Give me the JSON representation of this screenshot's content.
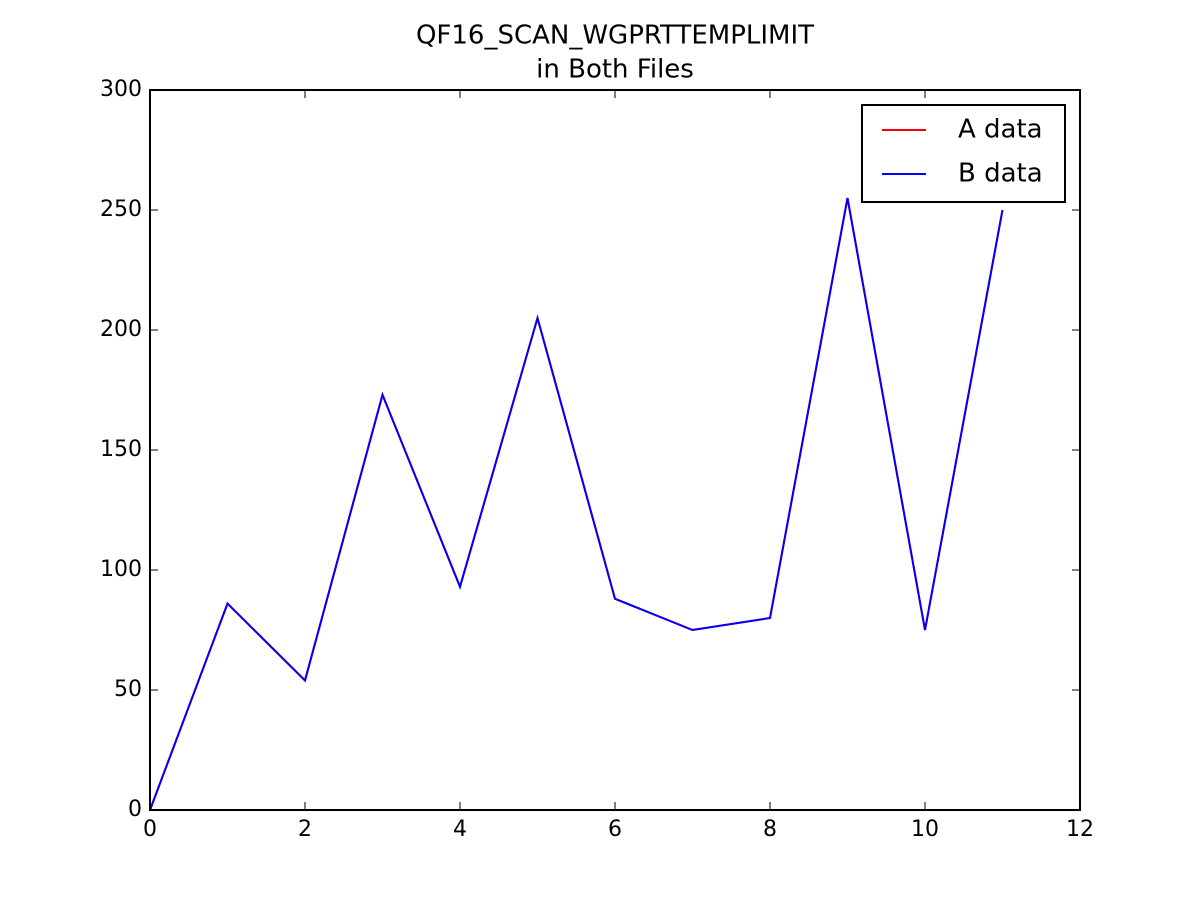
{
  "chart_data": {
    "type": "line",
    "title": [
      "QF16_SCAN_WGPRTTEMPLIMIT",
      "in Both Files"
    ],
    "x": [
      0,
      1,
      2,
      3,
      4,
      5,
      6,
      7,
      8,
      9,
      10,
      11
    ],
    "series": [
      {
        "name": "A data",
        "color": "#ff0000",
        "values": [
          0,
          86,
          54,
          173,
          93,
          205,
          88,
          75,
          80,
          255,
          75,
          250
        ]
      },
      {
        "name": "B data",
        "color": "#0000ff",
        "values": [
          0,
          86,
          54,
          173,
          93,
          205,
          88,
          75,
          80,
          255,
          75,
          250
        ]
      }
    ],
    "xlim": [
      0,
      12
    ],
    "xticks": [
      0,
      2,
      4,
      6,
      8,
      10,
      12
    ],
    "ylim": [
      0,
      300
    ],
    "yticks": [
      0,
      50,
      100,
      150,
      200,
      250,
      300
    ],
    "grid": false,
    "legend": "upper-right"
  }
}
